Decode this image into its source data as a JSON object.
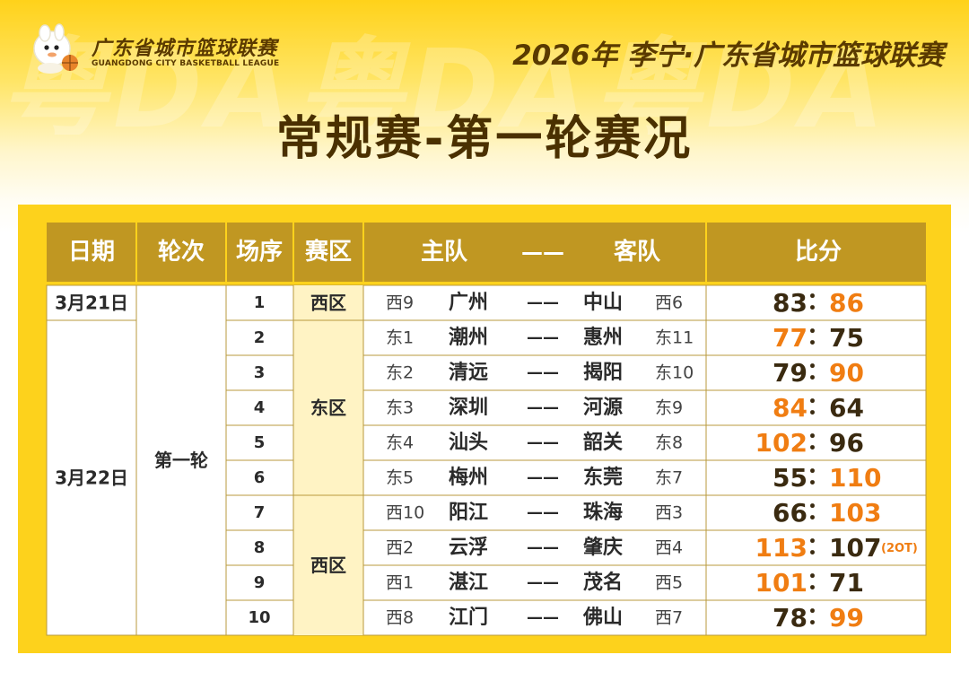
{
  "logo": {
    "cn": "广东省城市篮球联赛",
    "en": "GUANGDONG CITY BASKETBALL LEAGUE",
    "icon": "mascot-icon"
  },
  "league_title": "2026年 李宁·广东省城市篮球联赛",
  "page_title": "常规赛-第一轮赛况",
  "table": {
    "headers": {
      "date": "日期",
      "round": "轮次",
      "order": "场序",
      "zone": "赛区",
      "home": "主队",
      "dash": "——",
      "away": "客队",
      "score": "比分"
    },
    "date_groups": [
      {
        "label": "3月21日",
        "rows": 1
      },
      {
        "label": "3月22日",
        "rows": 9
      }
    ],
    "round_label": "第一轮",
    "zone_groups": [
      {
        "label": "西区",
        "rows": 1,
        "highlight": true
      },
      {
        "label": "东区",
        "rows": 5,
        "highlight": true
      },
      {
        "label": "西区",
        "rows": 4,
        "highlight": true
      }
    ],
    "games": [
      {
        "order": "1",
        "home_seed": "西9",
        "home": "广州",
        "away": "中山",
        "away_seed": "西6",
        "home_score": "83",
        "away_score": "86",
        "winner": "away",
        "note": ""
      },
      {
        "order": "2",
        "home_seed": "东1",
        "home": "潮州",
        "away": "惠州",
        "away_seed": "东11",
        "home_score": "77",
        "away_score": "75",
        "winner": "home",
        "note": ""
      },
      {
        "order": "3",
        "home_seed": "东2",
        "home": "清远",
        "away": "揭阳",
        "away_seed": "东10",
        "home_score": "79",
        "away_score": "90",
        "winner": "away",
        "note": ""
      },
      {
        "order": "4",
        "home_seed": "东3",
        "home": "深圳",
        "away": "河源",
        "away_seed": "东9",
        "home_score": "84",
        "away_score": "64",
        "winner": "home",
        "note": ""
      },
      {
        "order": "5",
        "home_seed": "东4",
        "home": "汕头",
        "away": "韶关",
        "away_seed": "东8",
        "home_score": "102",
        "away_score": "96",
        "winner": "home",
        "note": ""
      },
      {
        "order": "6",
        "home_seed": "东5",
        "home": "梅州",
        "away": "东莞",
        "away_seed": "东7",
        "home_score": "55",
        "away_score": "110",
        "winner": "away",
        "note": ""
      },
      {
        "order": "7",
        "home_seed": "西10",
        "home": "阳江",
        "away": "珠海",
        "away_seed": "西3",
        "home_score": "66",
        "away_score": "103",
        "winner": "away",
        "note": ""
      },
      {
        "order": "8",
        "home_seed": "西2",
        "home": "云浮",
        "away": "肇庆",
        "away_seed": "西4",
        "home_score": "113",
        "away_score": "107",
        "winner": "home",
        "note": "(2OT)"
      },
      {
        "order": "9",
        "home_seed": "西1",
        "home": "湛江",
        "away": "茂名",
        "away_seed": "西5",
        "home_score": "101",
        "away_score": "71",
        "winner": "home",
        "note": ""
      },
      {
        "order": "10",
        "home_seed": "西8",
        "home": "江门",
        "away": "佛山",
        "away_seed": "西7",
        "home_score": "78",
        "away_score": "99",
        "winner": "away",
        "note": ""
      }
    ],
    "colors": {
      "header_bg": "#c09722",
      "header_text": "#ffffff",
      "board_bg": "#fdd21c",
      "zone_highlight": "#fff3c4",
      "winner": "#f07d12",
      "loser": "#3a2a10",
      "grid": "#b89a3c",
      "text": "#333333"
    }
  }
}
